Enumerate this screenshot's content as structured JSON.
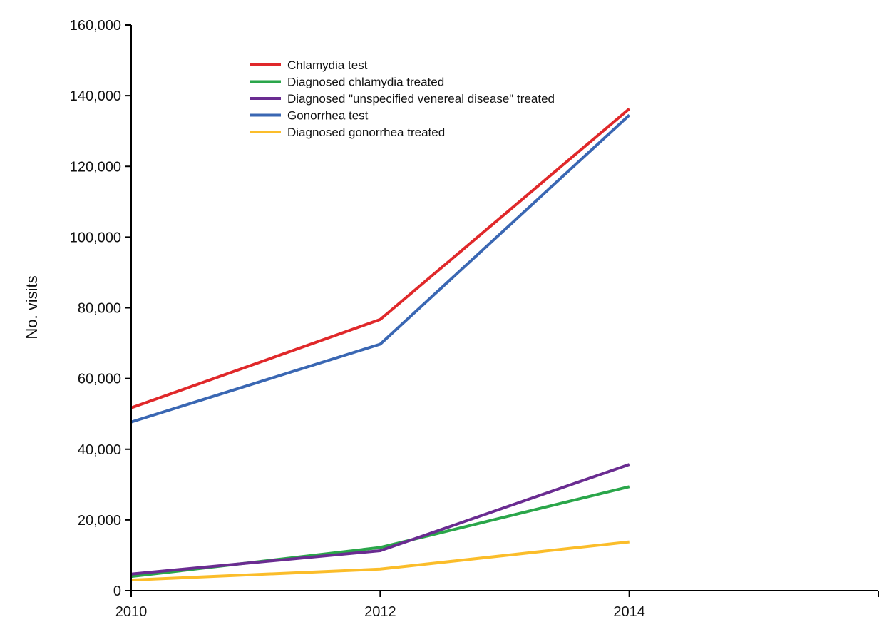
{
  "chart_data": {
    "type": "line",
    "title": "",
    "xlabel": "",
    "ylabel": "No. visits",
    "x": [
      2010,
      2012,
      2014
    ],
    "xlim": [
      2010,
      2016
    ],
    "x_ticks": [
      "2010",
      "2012",
      "2014"
    ],
    "ylim": [
      0,
      160000
    ],
    "y_ticks": [
      "0",
      "20,000",
      "40,000",
      "60,000",
      "80,000",
      "100,000",
      "120,000",
      "140,000",
      "160,000"
    ],
    "grid": false,
    "legend_position": "top-left",
    "series": [
      {
        "name": "Chlamydia test",
        "color": "#e0282a",
        "values": [
          51700,
          76700,
          136300
        ]
      },
      {
        "name": "Diagnosed chlamydia treated",
        "color": "#2aa64a",
        "values": [
          4000,
          12200,
          29400
        ]
      },
      {
        "name": "Diagnosed \"unspecified venereal disease\" treated",
        "color": "#6a2c91",
        "values": [
          4700,
          11300,
          35700
        ]
      },
      {
        "name": "Gonorrhea test",
        "color": "#3a67b3",
        "values": [
          47700,
          69700,
          134500
        ]
      },
      {
        "name": "Diagnosed gonorrhea treated",
        "color": "#fbbd2a",
        "values": [
          3000,
          6100,
          13800
        ]
      }
    ]
  }
}
